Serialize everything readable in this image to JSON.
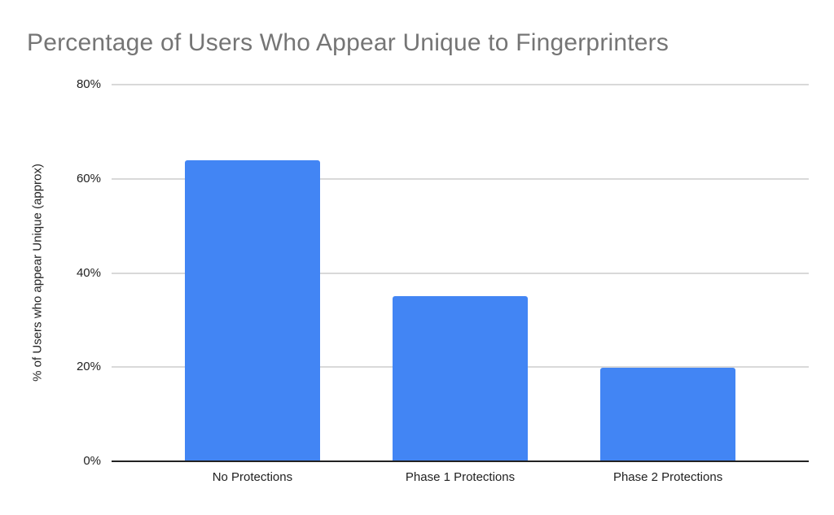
{
  "chart_data": {
    "type": "bar",
    "title": "Percentage of Users Who Appear Unique to Fingerprinters",
    "categories": [
      "No Protections",
      "Phase 1 Protections",
      "Phase 2 Protections"
    ],
    "values": [
      64,
      35,
      19.8
    ],
    "xlabel": "",
    "ylabel": "% of Users who appear Unique (approx)",
    "ylim": [
      0,
      80
    ],
    "yticks": [
      "0%",
      "20%",
      "40%",
      "60%",
      "80%"
    ],
    "grid": true,
    "legend": false,
    "colors": {
      "bar": "#4285f4",
      "gridline": "#d9d9d9",
      "axis": "#222222",
      "title": "#757575",
      "background": "#ffffff"
    }
  }
}
